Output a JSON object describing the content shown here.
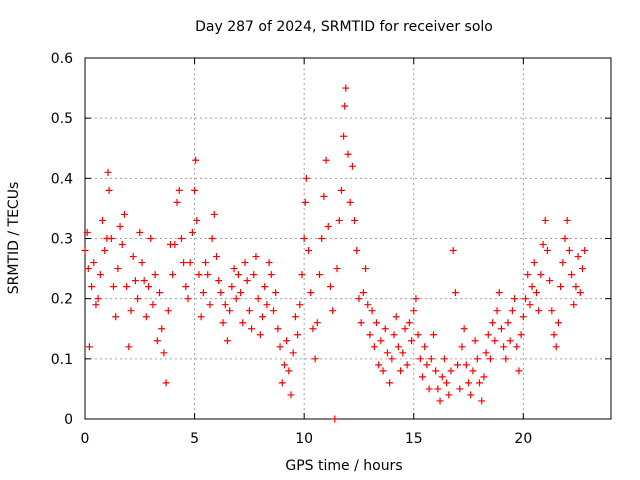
{
  "chart_data": {
    "type": "scatter",
    "title": "Day 287 of 2024, SRMTID for receiver solo",
    "xlabel": "GPS time / hours",
    "ylabel": "SRMTID / TECUs",
    "xlim": [
      0,
      24
    ],
    "ylim": [
      0,
      0.6
    ],
    "x_ticks": [
      0,
      5,
      10,
      15,
      20
    ],
    "y_ticks": [
      0,
      0.1,
      0.2,
      0.3,
      0.4,
      0.5,
      0.6
    ],
    "x_tick_labels": [
      "0",
      "5",
      "10",
      "15",
      "20"
    ],
    "y_tick_labels": [
      "0",
      "0.1",
      "0.2",
      "0.3",
      "0.4",
      "0.5",
      "0.6"
    ],
    "grid": true,
    "marker": "+",
    "color": "#ff0000",
    "series": [
      {
        "name": "SRMTID",
        "points": [
          [
            0.0,
            0.28
          ],
          [
            0.1,
            0.31
          ],
          [
            0.15,
            0.25
          ],
          [
            0.2,
            0.12
          ],
          [
            0.3,
            0.22
          ],
          [
            0.4,
            0.26
          ],
          [
            0.5,
            0.19
          ],
          [
            0.6,
            0.2
          ],
          [
            0.7,
            0.24
          ],
          [
            0.8,
            0.33
          ],
          [
            0.9,
            0.28
          ],
          [
            1.0,
            0.3
          ],
          [
            1.05,
            0.41
          ],
          [
            1.1,
            0.38
          ],
          [
            1.2,
            0.3
          ],
          [
            1.3,
            0.22
          ],
          [
            1.4,
            0.17
          ],
          [
            1.5,
            0.25
          ],
          [
            1.6,
            0.32
          ],
          [
            1.7,
            0.29
          ],
          [
            1.8,
            0.34
          ],
          [
            1.9,
            0.22
          ],
          [
            2.0,
            0.12
          ],
          [
            2.1,
            0.18
          ],
          [
            2.2,
            0.27
          ],
          [
            2.3,
            0.23
          ],
          [
            2.4,
            0.2
          ],
          [
            2.5,
            0.31
          ],
          [
            2.6,
            0.26
          ],
          [
            2.7,
            0.23
          ],
          [
            2.8,
            0.17
          ],
          [
            2.9,
            0.22
          ],
          [
            3.0,
            0.3
          ],
          [
            3.1,
            0.19
          ],
          [
            3.2,
            0.24
          ],
          [
            3.3,
            0.13
          ],
          [
            3.4,
            0.21
          ],
          [
            3.5,
            0.15
          ],
          [
            3.6,
            0.11
          ],
          [
            3.7,
            0.06
          ],
          [
            3.8,
            0.18
          ],
          [
            3.9,
            0.29
          ],
          [
            4.0,
            0.24
          ],
          [
            4.1,
            0.29
          ],
          [
            4.2,
            0.36
          ],
          [
            4.3,
            0.38
          ],
          [
            4.4,
            0.3
          ],
          [
            4.5,
            0.26
          ],
          [
            4.6,
            0.22
          ],
          [
            4.7,
            0.2
          ],
          [
            4.8,
            0.26
          ],
          [
            4.9,
            0.31
          ],
          [
            5.0,
            0.38
          ],
          [
            5.05,
            0.43
          ],
          [
            5.1,
            0.33
          ],
          [
            5.2,
            0.24
          ],
          [
            5.3,
            0.17
          ],
          [
            5.4,
            0.21
          ],
          [
            5.5,
            0.26
          ],
          [
            5.6,
            0.24
          ],
          [
            5.7,
            0.19
          ],
          [
            5.8,
            0.3
          ],
          [
            5.9,
            0.34
          ],
          [
            6.0,
            0.27
          ],
          [
            6.1,
            0.23
          ],
          [
            6.2,
            0.21
          ],
          [
            6.3,
            0.16
          ],
          [
            6.4,
            0.19
          ],
          [
            6.5,
            0.13
          ],
          [
            6.6,
            0.18
          ],
          [
            6.7,
            0.22
          ],
          [
            6.8,
            0.25
          ],
          [
            6.9,
            0.2
          ],
          [
            7.0,
            0.24
          ],
          [
            7.1,
            0.21
          ],
          [
            7.2,
            0.16
          ],
          [
            7.3,
            0.26
          ],
          [
            7.4,
            0.23
          ],
          [
            7.5,
            0.18
          ],
          [
            7.6,
            0.15
          ],
          [
            7.7,
            0.24
          ],
          [
            7.8,
            0.27
          ],
          [
            7.9,
            0.2
          ],
          [
            8.0,
            0.14
          ],
          [
            8.1,
            0.17
          ],
          [
            8.2,
            0.22
          ],
          [
            8.3,
            0.19
          ],
          [
            8.4,
            0.26
          ],
          [
            8.5,
            0.24
          ],
          [
            8.6,
            0.18
          ],
          [
            8.7,
            0.21
          ],
          [
            8.8,
            0.15
          ],
          [
            8.9,
            0.12
          ],
          [
            9.0,
            0.06
          ],
          [
            9.1,
            0.09
          ],
          [
            9.2,
            0.13
          ],
          [
            9.3,
            0.08
          ],
          [
            9.4,
            0.04
          ],
          [
            9.5,
            0.11
          ],
          [
            9.6,
            0.17
          ],
          [
            9.7,
            0.14
          ],
          [
            9.8,
            0.19
          ],
          [
            9.9,
            0.24
          ],
          [
            10.0,
            0.3
          ],
          [
            10.05,
            0.36
          ],
          [
            10.1,
            0.4
          ],
          [
            10.2,
            0.28
          ],
          [
            10.3,
            0.21
          ],
          [
            10.4,
            0.15
          ],
          [
            10.5,
            0.1
          ],
          [
            10.6,
            0.16
          ],
          [
            10.7,
            0.24
          ],
          [
            10.8,
            0.3
          ],
          [
            10.9,
            0.37
          ],
          [
            11.0,
            0.43
          ],
          [
            11.1,
            0.32
          ],
          [
            11.2,
            0.22
          ],
          [
            11.3,
            0.18
          ],
          [
            11.4,
            0.0
          ],
          [
            11.5,
            0.25
          ],
          [
            11.6,
            0.33
          ],
          [
            11.7,
            0.38
          ],
          [
            11.8,
            0.47
          ],
          [
            11.85,
            0.52
          ],
          [
            11.9,
            0.55
          ],
          [
            12.0,
            0.44
          ],
          [
            12.1,
            0.36
          ],
          [
            12.2,
            0.42
          ],
          [
            12.3,
            0.33
          ],
          [
            12.4,
            0.28
          ],
          [
            12.5,
            0.2
          ],
          [
            12.6,
            0.16
          ],
          [
            12.7,
            0.21
          ],
          [
            12.8,
            0.25
          ],
          [
            12.9,
            0.19
          ],
          [
            13.0,
            0.14
          ],
          [
            13.1,
            0.18
          ],
          [
            13.2,
            0.12
          ],
          [
            13.3,
            0.16
          ],
          [
            13.4,
            0.09
          ],
          [
            13.5,
            0.13
          ],
          [
            13.6,
            0.08
          ],
          [
            13.7,
            0.15
          ],
          [
            13.8,
            0.11
          ],
          [
            13.9,
            0.06
          ],
          [
            14.0,
            0.1
          ],
          [
            14.1,
            0.14
          ],
          [
            14.2,
            0.17
          ],
          [
            14.3,
            0.12
          ],
          [
            14.4,
            0.08
          ],
          [
            14.5,
            0.11
          ],
          [
            14.6,
            0.15
          ],
          [
            14.7,
            0.09
          ],
          [
            14.8,
            0.16
          ],
          [
            14.9,
            0.13
          ],
          [
            15.0,
            0.18
          ],
          [
            15.1,
            0.2
          ],
          [
            15.2,
            0.14
          ],
          [
            15.3,
            0.1
          ],
          [
            15.4,
            0.07
          ],
          [
            15.5,
            0.12
          ],
          [
            15.6,
            0.09
          ],
          [
            15.7,
            0.05
          ],
          [
            15.8,
            0.1
          ],
          [
            15.9,
            0.14
          ],
          [
            16.0,
            0.08
          ],
          [
            16.1,
            0.05
          ],
          [
            16.2,
            0.03
          ],
          [
            16.3,
            0.07
          ],
          [
            16.4,
            0.1
          ],
          [
            16.5,
            0.06
          ],
          [
            16.6,
            0.04
          ],
          [
            16.7,
            0.08
          ],
          [
            16.8,
            0.28
          ],
          [
            16.9,
            0.21
          ],
          [
            17.0,
            0.09
          ],
          [
            17.1,
            0.05
          ],
          [
            17.2,
            0.12
          ],
          [
            17.3,
            0.15
          ],
          [
            17.4,
            0.09
          ],
          [
            17.5,
            0.06
          ],
          [
            17.6,
            0.04
          ],
          [
            17.7,
            0.08
          ],
          [
            17.8,
            0.13
          ],
          [
            17.9,
            0.1
          ],
          [
            18.0,
            0.06
          ],
          [
            18.1,
            0.03
          ],
          [
            18.2,
            0.07
          ],
          [
            18.3,
            0.11
          ],
          [
            18.4,
            0.14
          ],
          [
            18.5,
            0.1
          ],
          [
            18.6,
            0.16
          ],
          [
            18.7,
            0.13
          ],
          [
            18.8,
            0.18
          ],
          [
            18.9,
            0.21
          ],
          [
            19.0,
            0.15
          ],
          [
            19.1,
            0.12
          ],
          [
            19.2,
            0.1
          ],
          [
            19.3,
            0.16
          ],
          [
            19.4,
            0.13
          ],
          [
            19.5,
            0.18
          ],
          [
            19.6,
            0.2
          ],
          [
            19.7,
            0.12
          ],
          [
            19.8,
            0.08
          ],
          [
            19.9,
            0.14
          ],
          [
            20.0,
            0.17
          ],
          [
            20.1,
            0.2
          ],
          [
            20.2,
            0.24
          ],
          [
            20.3,
            0.19
          ],
          [
            20.4,
            0.22
          ],
          [
            20.5,
            0.26
          ],
          [
            20.6,
            0.21
          ],
          [
            20.7,
            0.18
          ],
          [
            20.8,
            0.24
          ],
          [
            20.9,
            0.29
          ],
          [
            21.0,
            0.33
          ],
          [
            21.1,
            0.28
          ],
          [
            21.2,
            0.23
          ],
          [
            21.3,
            0.18
          ],
          [
            21.4,
            0.14
          ],
          [
            21.5,
            0.12
          ],
          [
            21.6,
            0.16
          ],
          [
            21.7,
            0.22
          ],
          [
            21.8,
            0.26
          ],
          [
            21.9,
            0.3
          ],
          [
            22.0,
            0.33
          ],
          [
            22.1,
            0.28
          ],
          [
            22.2,
            0.24
          ],
          [
            22.3,
            0.19
          ],
          [
            22.4,
            0.22
          ],
          [
            22.5,
            0.27
          ],
          [
            22.6,
            0.21
          ],
          [
            22.7,
            0.25
          ],
          [
            22.8,
            0.28
          ]
        ]
      }
    ]
  }
}
